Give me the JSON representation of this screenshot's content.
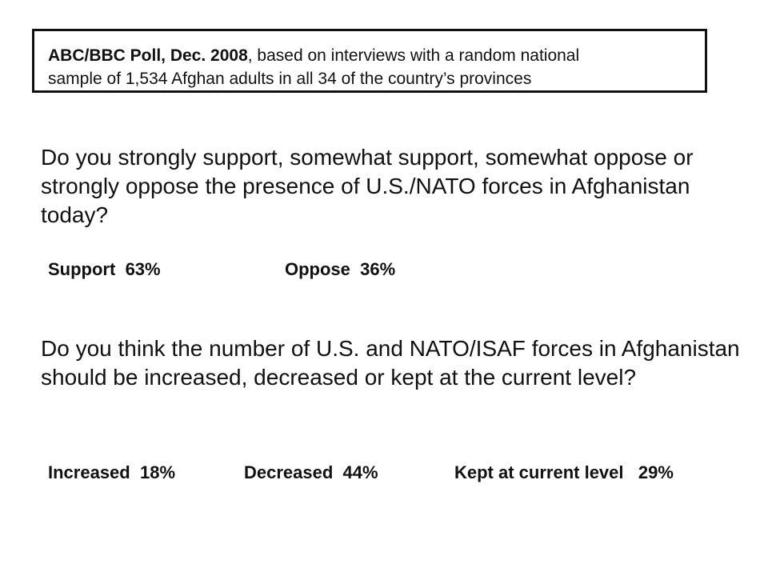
{
  "source": {
    "title": "ABC/BBC Poll, Dec. 2008",
    "description_line1": ", based on interviews with a random national",
    "description_line2": "sample of 1,534 Afghan adults in all 34 of the country’s provinces"
  },
  "questions": [
    {
      "text": "Do you strongly support, somewhat support, somewhat oppose or strongly oppose the presence of U.S./NATO forces in Afghanistan today?",
      "answers": [
        {
          "label": "Support",
          "value": "63%"
        },
        {
          "label": "Oppose",
          "value": "36%"
        }
      ]
    },
    {
      "text": "Do you think the number of U.S. and NATO/ISAF forces in Afghanistan should be increased, decreased or kept at the current level?",
      "answers": [
        {
          "label": "Increased",
          "value": "18%"
        },
        {
          "label": "Decreased",
          "value": "44%"
        },
        {
          "label": "Kept at current level",
          "value": "29%"
        }
      ]
    }
  ]
}
